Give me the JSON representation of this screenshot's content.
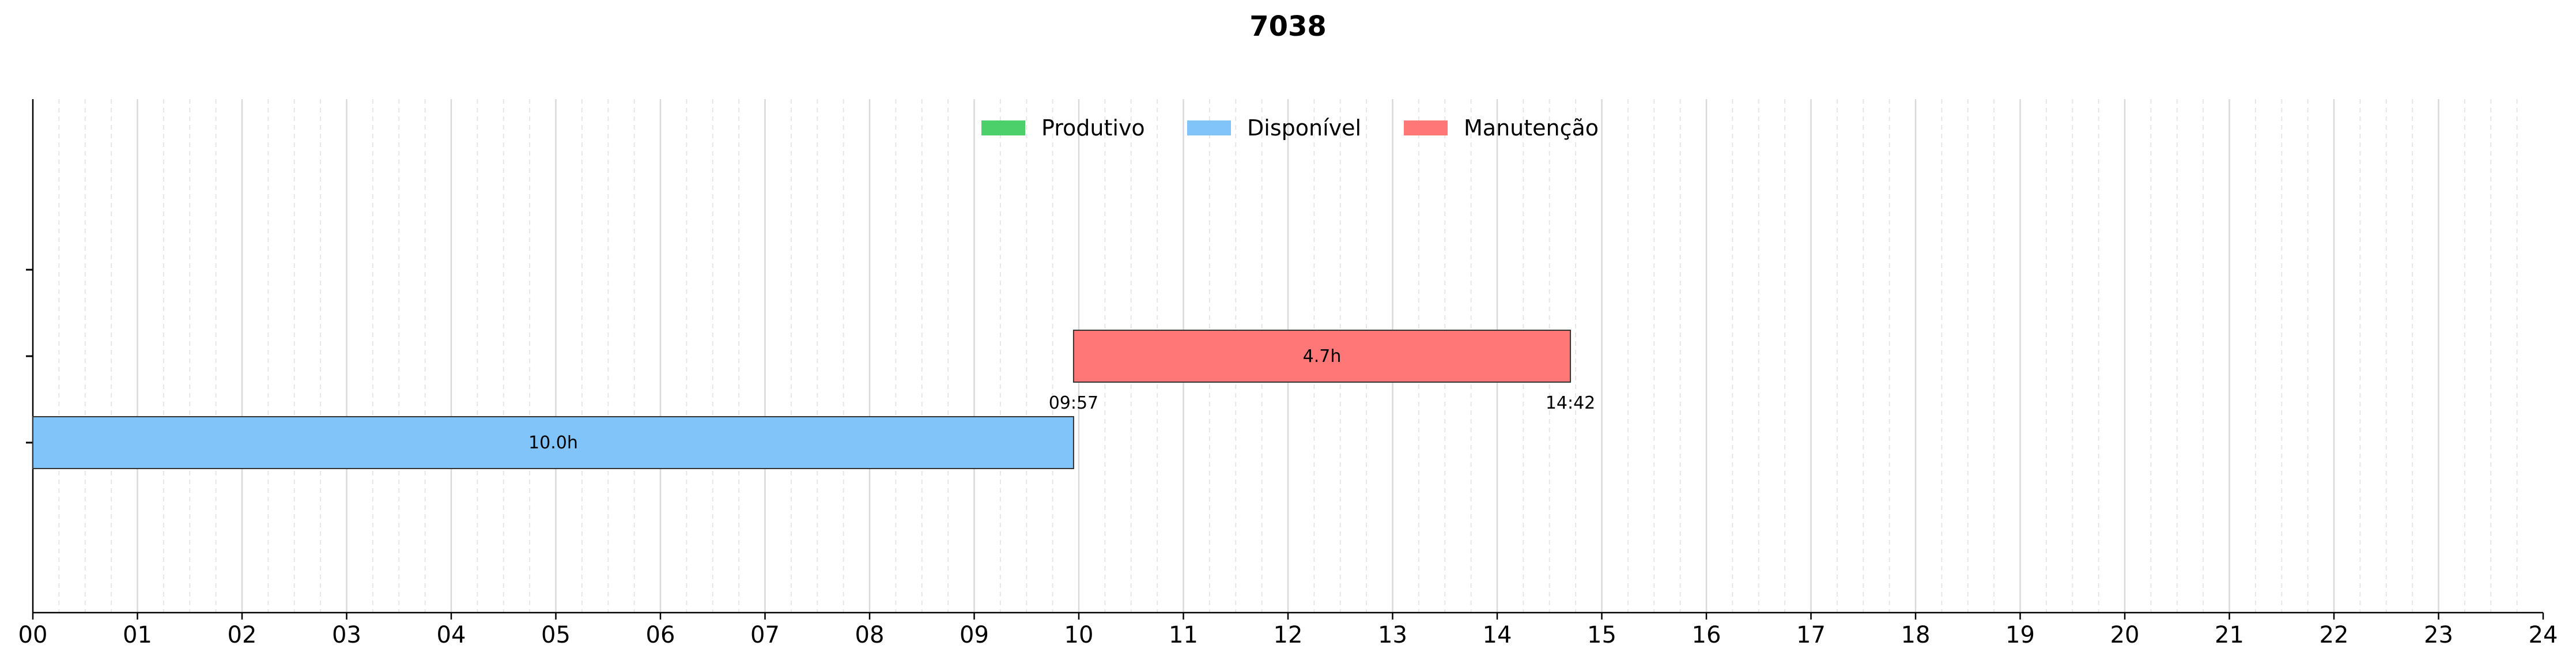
{
  "title": "7038",
  "legend": [
    {
      "label": "Produtivo",
      "color": "#4cd06a"
    },
    {
      "label": "Disponível",
      "color": "#80c4fa"
    },
    {
      "label": "Manutenção",
      "color": "#ff7777"
    }
  ],
  "chart_data": {
    "type": "gantt",
    "title": "7038",
    "xlim": [
      0,
      24
    ],
    "x_unit": "hours",
    "xtick_labels": [
      "00",
      "01",
      "02",
      "03",
      "04",
      "05",
      "06",
      "07",
      "08",
      "09",
      "10",
      "11",
      "12",
      "13",
      "14",
      "15",
      "16",
      "17",
      "18",
      "19",
      "20",
      "21",
      "22",
      "23",
      "24"
    ],
    "grid": "vertical",
    "legend_position": "top-center",
    "rows": 3,
    "bars": [
      {
        "series": "Disponível",
        "row": 1,
        "start": 0.0,
        "end": 9.95,
        "label": "10.0h",
        "start_label": "",
        "end_label": ""
      },
      {
        "series": "Manutenção",
        "row": 2,
        "start": 9.95,
        "end": 14.7,
        "label": "4.7h",
        "start_label": "09:57",
        "end_label": "14:42"
      }
    ]
  }
}
